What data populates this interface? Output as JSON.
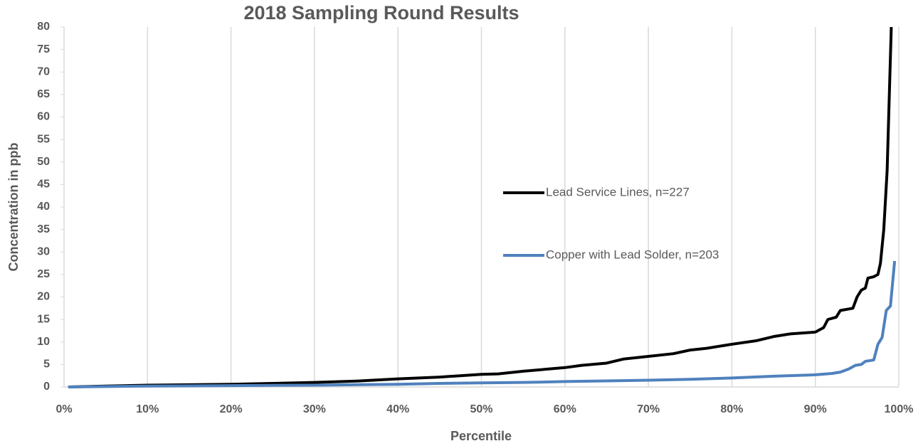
{
  "chart_data": {
    "type": "line",
    "title": "2018 Sampling Round Results",
    "xlabel": "Percentile",
    "ylabel": "Concentration in ppb",
    "xlim": [
      0,
      100
    ],
    "ylim": [
      0,
      80
    ],
    "xticks": [
      {
        "value": 0,
        "label": "0%"
      },
      {
        "value": 10,
        "label": "10%"
      },
      {
        "value": 20,
        "label": "20%"
      },
      {
        "value": 30,
        "label": "30%"
      },
      {
        "value": 40,
        "label": "40%"
      },
      {
        "value": 50,
        "label": "50%"
      },
      {
        "value": 60,
        "label": "60%"
      },
      {
        "value": 70,
        "label": "70%"
      },
      {
        "value": 80,
        "label": "80%"
      },
      {
        "value": 90,
        "label": "90%"
      },
      {
        "value": 100,
        "label": "100%"
      }
    ],
    "yticks": [
      0,
      5,
      10,
      15,
      20,
      25,
      30,
      35,
      40,
      45,
      50,
      55,
      60,
      65,
      70,
      75,
      80
    ],
    "grid": "x",
    "series": [
      {
        "name": "Lead Service Lines, n=227",
        "color": "#000000",
        "x": [
          0.5,
          5,
          10,
          20,
          25,
          30,
          35,
          40,
          45,
          50,
          52,
          55,
          60,
          62,
          65,
          67,
          70,
          73,
          75,
          77,
          80,
          83,
          85,
          87,
          90,
          91,
          91.5,
          92.5,
          93,
          94.5,
          95,
          95.5,
          96,
          96.3,
          97,
          97.5,
          97.8,
          98.2,
          98.6,
          99.1
        ],
        "values": [
          0,
          0.2,
          0.4,
          0.6,
          0.8,
          1.0,
          1.3,
          1.8,
          2.2,
          2.8,
          2.9,
          3.5,
          4.3,
          4.8,
          5.3,
          6.2,
          6.8,
          7.4,
          8.2,
          8.6,
          9.5,
          10.3,
          11.2,
          11.8,
          12.2,
          13.2,
          15,
          15.5,
          17,
          17.5,
          20,
          21.5,
          22,
          24.2,
          24.5,
          25,
          27.5,
          35,
          48,
          80
        ]
      },
      {
        "name": "Copper with Lead Solder, n=203",
        "color": "#4f81bd",
        "x": [
          0.5,
          10,
          20,
          30,
          40,
          45,
          50,
          55,
          60,
          70,
          75,
          80,
          85,
          90,
          92,
          93,
          94,
          94.8,
          95.5,
          96,
          97,
          97.5,
          98,
          98.5,
          99,
          99.5
        ],
        "values": [
          0,
          0.2,
          0.3,
          0.4,
          0.6,
          0.8,
          0.9,
          1.0,
          1.2,
          1.5,
          1.7,
          2.0,
          2.4,
          2.7,
          3.0,
          3.3,
          4.0,
          4.8,
          5.0,
          5.7,
          6.0,
          9.5,
          11,
          17,
          18,
          28
        ]
      }
    ]
  }
}
